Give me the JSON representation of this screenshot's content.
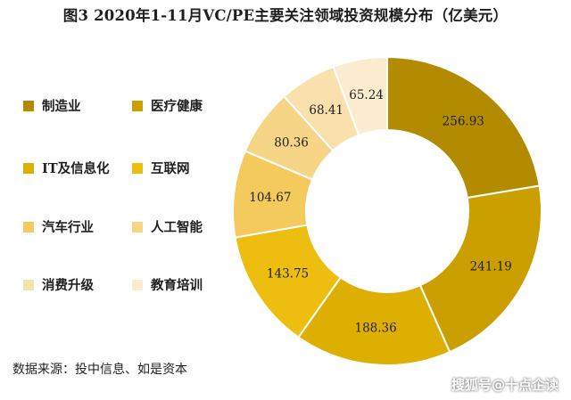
{
  "title": "图3  2020年1-11月VC/PE主要关注领域投资规模分布（亿美元）",
  "source": "数据来源：投中信息、如是资本",
  "watermark": "搜狐号@十点企读",
  "chart_data": {
    "type": "pie",
    "variant": "donut",
    "title": "图3  2020年1-11月VC/PE主要关注领域投资规模分布（亿美元）",
    "legend_position": "left",
    "categories": [
      "制造业",
      "医疗健康",
      "IT及信息化",
      "互联网",
      "汽车行业",
      "人工智能",
      "消费升级",
      "教育培训"
    ],
    "values": [
      256.93,
      241.19,
      188.36,
      143.75,
      104.67,
      80.36,
      68.41,
      65.24
    ],
    "value_labels": [
      "256.93",
      "241.19",
      "188.36",
      "143.75",
      "104.67",
      "80.36",
      "68.41",
      "65.24"
    ],
    "colors": [
      "#B38B00",
      "#CC9F00",
      "#DDAF00",
      "#EDBD10",
      "#F5CA5C",
      "#F7D587",
      "#F9E0AC",
      "#FBEBCF"
    ]
  }
}
